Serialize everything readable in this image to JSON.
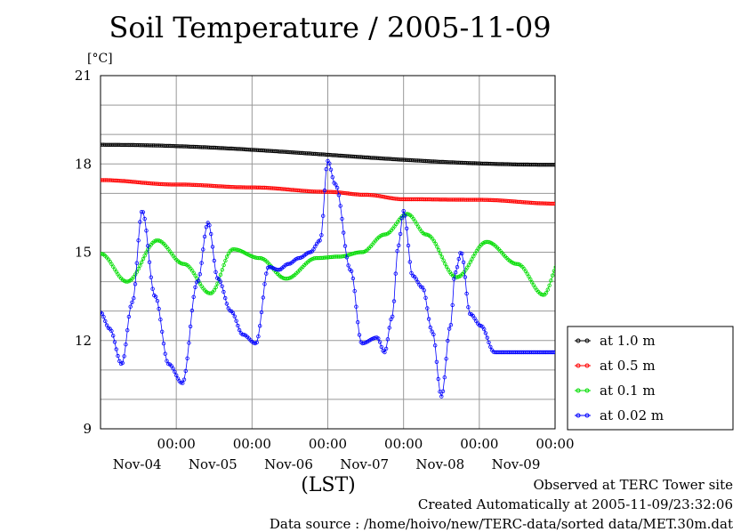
{
  "chart_data": {
    "type": "line",
    "title": "Soil Temperature / 2005-11-09",
    "ylabel": "[°C]",
    "xlabel": "(LST)",
    "ylim": [
      9,
      21
    ],
    "yticks": [
      9,
      12,
      15,
      18,
      21
    ],
    "xlim": [
      0,
      6
    ],
    "x_unit": "days from 2005-11-03 12:00 LST",
    "xticks": [
      {
        "x": 1,
        "time": "00:00",
        "date": "Nov-04"
      },
      {
        "x": 2,
        "time": "00:00",
        "date": "Nov-05"
      },
      {
        "x": 3,
        "time": "00:00",
        "date": "Nov-06"
      },
      {
        "x": 4,
        "time": "00:00",
        "date": "Nov-07"
      },
      {
        "x": 5,
        "time": "00:00",
        "date": "Nov-08"
      },
      {
        "x": 6,
        "time": "00:00",
        "date": "Nov-09"
      }
    ],
    "grid": true,
    "legend": "right",
    "series": [
      {
        "name": "at 1.0 m",
        "color": "#000000",
        "x": [
          0,
          6
        ],
        "y": [
          18.65,
          17.97
        ]
      },
      {
        "name": "at 0.5 m",
        "color": "#ff0000",
        "x": [
          0,
          1,
          2,
          3,
          3.5,
          4,
          5,
          6
        ],
        "y": [
          17.45,
          17.3,
          17.2,
          17.05,
          16.95,
          16.8,
          16.78,
          16.65
        ]
      },
      {
        "name": "at 0.1 m",
        "color": "#00dd00",
        "x": [
          0,
          0.35,
          0.75,
          1.1,
          1.45,
          1.75,
          2.1,
          2.45,
          2.85,
          3.15,
          3.45,
          3.75,
          4.05,
          4.3,
          4.7,
          5.1,
          5.5,
          5.85,
          6.05
        ],
        "y": [
          14.95,
          14.0,
          15.4,
          14.6,
          13.6,
          15.1,
          14.8,
          14.1,
          14.8,
          14.85,
          15.0,
          15.6,
          16.3,
          15.6,
          14.15,
          15.35,
          14.6,
          13.55,
          14.6
        ]
      },
      {
        "name": "at 0.02 m",
        "color": "#0000ff",
        "x": [
          0,
          0.12,
          0.28,
          0.42,
          0.55,
          0.72,
          0.9,
          1.08,
          1.28,
          1.42,
          1.55,
          1.72,
          1.88,
          2.05,
          2.22,
          2.35,
          2.48,
          2.62,
          2.77,
          2.9,
          3.0,
          3.1,
          3.3,
          3.45,
          3.65,
          3.75,
          3.85,
          3.93,
          4.0,
          4.12,
          4.25,
          4.38,
          4.5,
          4.62,
          4.68,
          4.76,
          4.88,
          5.02,
          5.2,
          5.4,
          5.55,
          5.7,
          5.84,
          6.0
        ],
        "y": [
          12.95,
          12.4,
          11.2,
          13.3,
          16.4,
          13.5,
          11.2,
          10.55,
          14.0,
          16.0,
          14.1,
          13.0,
          12.2,
          11.9,
          14.5,
          14.4,
          14.6,
          14.8,
          15.0,
          15.4,
          18.1,
          17.3,
          14.4,
          11.9,
          12.1,
          11.6,
          12.8,
          15.2,
          16.4,
          14.2,
          13.8,
          12.3,
          10.1,
          12.5,
          14.3,
          15.0,
          12.9,
          12.5,
          11.6,
          11.6,
          11.6,
          11.6,
          11.6,
          11.6
        ]
      }
    ]
  },
  "footer": {
    "line1": "Observed at TERC Tower site",
    "line2": "Created Automatically at 2005-11-09/23:32:06",
    "line3": "Data source : /home/hoivo/new/TERC-data/sorted  data/MET.30m.dat"
  }
}
